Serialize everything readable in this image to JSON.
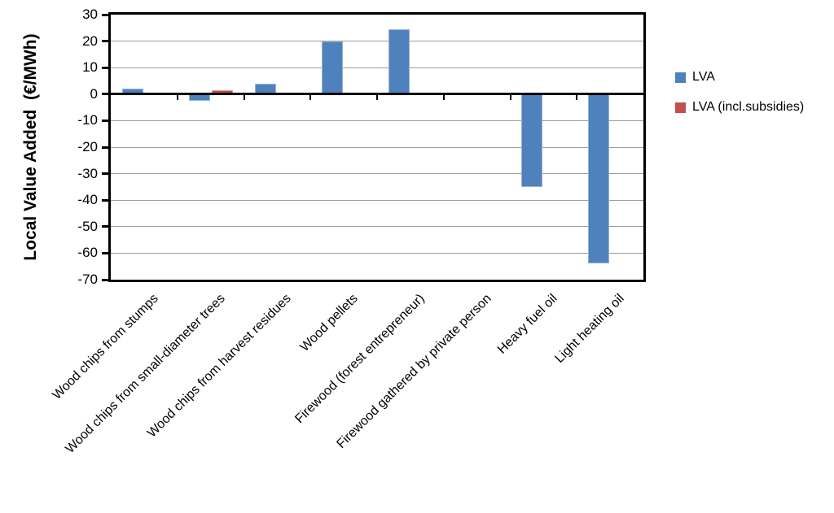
{
  "chart_data": {
    "type": "bar",
    "title": "",
    "xlabel": "",
    "ylabel": "Local Value Added  (€/MWh)",
    "categories": [
      "Wood chips from stumps",
      "Wood chips from small-diameter trees",
      "Wood chips from harvest residues",
      "Wood pellets",
      "Firewood (forest entrepreneur)",
      "Firewood gathered by private person",
      "Heavy fuel oil",
      "Light heating oil"
    ],
    "series": [
      {
        "name": "LVA",
        "color": "#4F81BD",
        "edge_color": "#95B3D7",
        "values": [
          2,
          -2.5,
          4,
          20,
          24.5,
          0,
          -35,
          -64
        ]
      },
      {
        "name": "LVA (incl.subsidies)",
        "color": "#C0504D",
        "edge_color": "#D99694",
        "values": [
          null,
          1.5,
          null,
          null,
          null,
          null,
          null,
          null
        ]
      }
    ],
    "ylim": [
      -70,
      30
    ],
    "ytick_step": 10,
    "ytick_labels": [
      "30",
      "20",
      "10",
      "0",
      "-10",
      "-20",
      "-30",
      "-40",
      "-50",
      "-60",
      "-70"
    ],
    "grid": true,
    "gridline_color": "#9C9C9C",
    "axis_color": "#000000",
    "legend_position": "right"
  }
}
